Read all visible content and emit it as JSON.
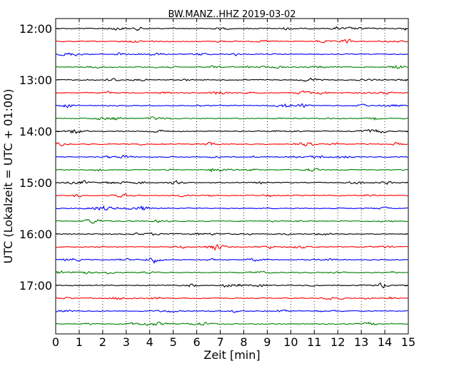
{
  "chart_data": {
    "type": "line",
    "title": "BW.MANZ..HHZ 2019-03-02",
    "xlabel": "Zeit  [min]",
    "ylabel": "UTC (Lokalzeit = UTC + 01:00)",
    "xlim": [
      0,
      15
    ],
    "x_ticks": [
      "0",
      "1",
      "2",
      "3",
      "4",
      "5",
      "6",
      "7",
      "8",
      "9",
      "10",
      "11",
      "12",
      "13",
      "14",
      "15"
    ],
    "y_ticks": [
      "12:00",
      "13:00",
      "14:00",
      "15:00",
      "16:00",
      "17:00"
    ],
    "trace_interval_minutes": 15,
    "trace_start": "12:00",
    "trace_count": 24,
    "trace_colors": [
      "#000000",
      "#ff0000",
      "#0000ff",
      "#008000"
    ],
    "grid": "vertical dotted",
    "legend": "none"
  }
}
